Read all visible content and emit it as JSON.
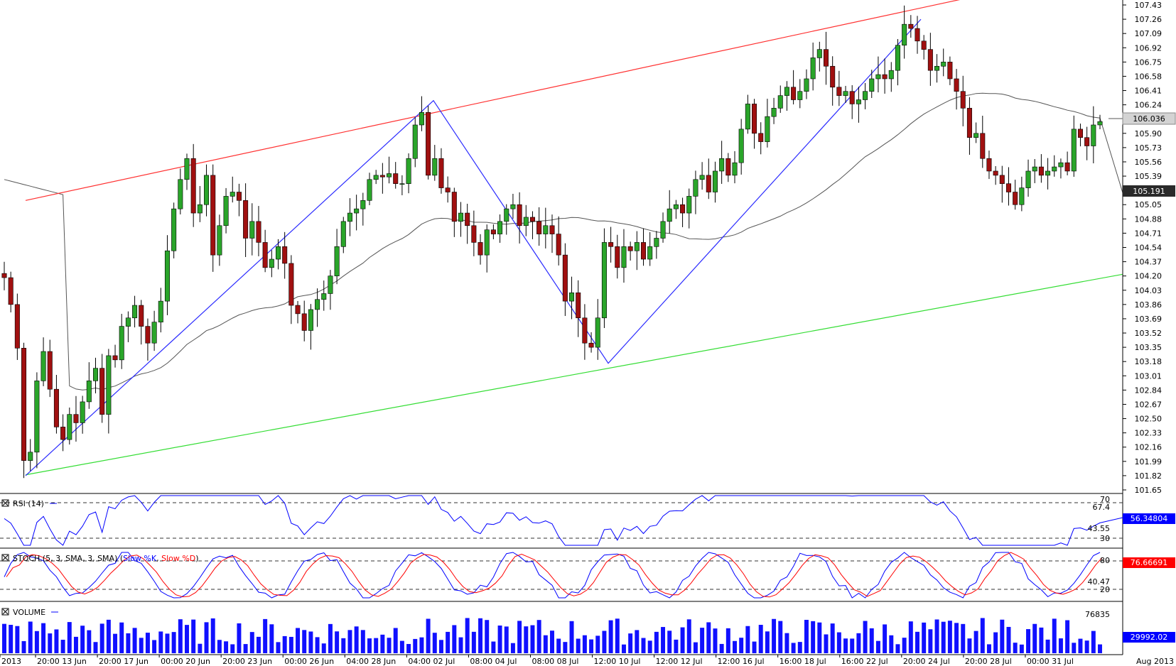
{
  "chart_data": [
    {
      "type": "candlestick",
      "panel": "price",
      "current_price": "106.036",
      "moving_average_value": "105.191",
      "ylim": [
        101.65,
        107.43
      ],
      "y_ticks": [
        "107.43",
        "107.26",
        "107.09",
        "106.92",
        "106.75",
        "106.58",
        "106.41",
        "106.24",
        "105.90",
        "105.73",
        "105.56",
        "105.39",
        "105.05",
        "104.88",
        "104.71",
        "104.54",
        "104.37",
        "104.20",
        "104.03",
        "103.86",
        "103.69",
        "103.52",
        "103.35",
        "103.18",
        "103.01",
        "102.84",
        "102.67",
        "102.50",
        "102.33",
        "102.16",
        "101.99",
        "101.82",
        "101.65"
      ],
      "pattern_points": [
        101.82,
        106.29,
        103.16,
        107.26
      ],
      "channel_upper": [
        105.1,
        107.62
      ],
      "channel_lower": [
        101.83,
        104.22
      ],
      "closes": [
        104.18,
        103.86,
        103.34,
        102.0,
        102.1,
        102.95,
        103.3,
        102.85,
        102.4,
        102.25,
        102.55,
        102.45,
        102.7,
        102.95,
        103.1,
        102.55,
        103.25,
        103.2,
        103.6,
        103.7,
        103.85,
        103.6,
        103.4,
        103.65,
        103.9,
        104.5,
        105.0,
        105.35,
        105.6,
        104.95,
        105.05,
        105.4,
        104.45,
        104.8,
        105.15,
        105.2,
        105.1,
        104.65,
        104.85,
        104.6,
        104.3,
        104.4,
        104.55,
        104.35,
        103.85,
        103.75,
        103.55,
        103.8,
        103.92,
        103.99,
        104.2,
        104.55,
        104.85,
        104.95,
        105.0,
        105.1,
        105.35,
        105.4,
        105.38,
        105.42,
        105.3,
        105.3,
        105.6,
        106.0,
        106.15,
        105.4,
        105.6,
        105.25,
        105.2,
        104.85,
        104.95,
        104.8,
        104.6,
        104.45,
        104.75,
        104.7,
        104.85,
        105.0,
        105.05,
        104.8,
        104.9,
        104.85,
        104.7,
        104.8,
        104.7,
        104.45,
        103.9,
        104.0,
        103.7,
        103.4,
        103.35,
        103.7,
        104.6,
        104.55,
        104.3,
        104.55,
        104.5,
        104.6,
        104.4,
        104.55,
        104.65,
        104.85,
        105.0,
        105.05,
        104.95,
        105.15,
        105.35,
        105.4,
        105.2,
        105.45,
        105.6,
        105.4,
        105.55,
        105.95,
        106.25,
        105.9,
        105.8,
        106.1,
        106.2,
        106.35,
        106.45,
        106.3,
        106.4,
        106.55,
        106.8,
        106.9,
        106.7,
        106.45,
        106.35,
        106.4,
        106.25,
        106.3,
        106.4,
        106.55,
        106.6,
        106.55,
        106.65,
        106.95,
        107.2,
        107.15,
        107.0,
        106.9,
        106.65,
        106.7,
        106.75,
        106.55,
        106.4,
        106.2,
        105.85,
        105.9,
        105.6,
        105.45,
        105.4,
        105.3,
        105.2,
        105.05,
        105.25,
        105.45,
        105.5,
        105.4,
        105.45,
        105.5,
        105.55,
        105.45,
        105.95,
        105.85,
        105.75,
        106.0,
        106.04
      ]
    },
    {
      "type": "line",
      "panel": "rsi",
      "title": "RSI (14)",
      "levels": [
        70,
        30
      ],
      "ticks": [
        "70",
        "67.4",
        "43.55",
        "30"
      ],
      "current_value": "56.34804"
    },
    {
      "type": "line",
      "panel": "stoch",
      "title_prefix": "STOCH (5, 3, SMA, 3, SMA)",
      "series": [
        {
          "name": "Slow %K",
          "color": "#0000ff"
        },
        {
          "name": "Slow %D",
          "color": "#ff0000"
        }
      ],
      "levels": [
        80,
        20
      ],
      "ticks": [
        "80",
        "40.47",
        "20"
      ],
      "current_value": "76.66691"
    },
    {
      "type": "bar",
      "panel": "volume",
      "title": "VOLUME",
      "ticks": [
        "76835"
      ],
      "current_value": "29992.02"
    }
  ],
  "x_axis_labels": [
    "2013",
    "20:00 13 Jun",
    "20:00 17 Jun",
    "00:00 20 Jun",
    "20:00 23 Jun",
    "00:00 26 Jun",
    "04:00 28 Jun",
    "04:00 02 Jul",
    "08:00 04 Jul",
    "08:00 08 Jul",
    "12:00 10 Jul",
    "12:00 12 Jul",
    "12:00 16 Jul",
    "16:00 18 Jul",
    "16:00 22 Jul",
    "20:00 24 Jul",
    "20:00 28 Jul",
    "00:00 31 Jul"
  ],
  "x_axis_right": "Aug 2013",
  "colors": {
    "bull": "#2aa52a",
    "bear": "#a01010",
    "upper_channel": "#ff3030",
    "lower_channel": "#33dd33",
    "pattern": "#2b2bff",
    "ma": "#555555",
    "rsi": "#0000ff",
    "volume": "#1010ff",
    "price_tag": "#d3d3d3",
    "ma_tag": "#2a2a2a",
    "value_tag": "#0000ff"
  }
}
